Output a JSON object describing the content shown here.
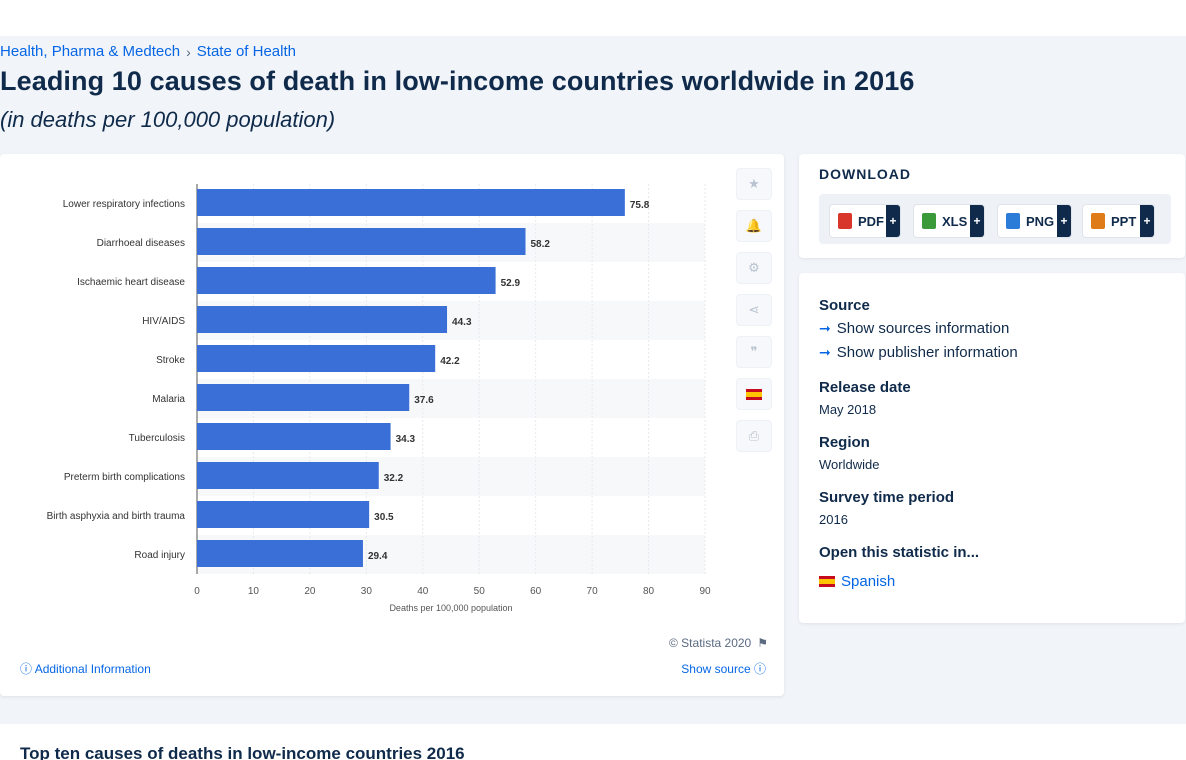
{
  "breadcrumb": {
    "items": [
      "Health, Pharma & Medtech",
      "State of Health"
    ],
    "separator": "›"
  },
  "page": {
    "title": "Leading 10 causes of death in low-income countries worldwide in 2016",
    "subtitle": "(in deaths per 100,000 population)"
  },
  "chart_data": {
    "type": "bar",
    "orientation": "horizontal",
    "categories": [
      "Lower respiratory infections",
      "Diarrhoeal diseases",
      "Ischaemic heart disease",
      "HIV/AIDS",
      "Stroke",
      "Malaria",
      "Tuberculosis",
      "Preterm birth complications",
      "Birth asphyxia and birth trauma",
      "Road injury"
    ],
    "values": [
      75.8,
      58.2,
      52.9,
      44.3,
      42.2,
      37.6,
      34.3,
      32.2,
      30.5,
      29.4
    ],
    "xlabel": "Deaths per 100,000 population",
    "xlim": [
      0,
      90
    ],
    "xticks": [
      0,
      10,
      20,
      30,
      40,
      50,
      60,
      70,
      80,
      90
    ],
    "bar_color": "#3a6fd8",
    "grid": true,
    "data_labels": true
  },
  "chart_footer": {
    "copyright": "© Statista 2020",
    "additional_info": "Additional Information",
    "show_source": "Show source"
  },
  "download": {
    "title": "DOWNLOAD",
    "buttons": [
      {
        "label": "PDF",
        "icon": "pdf-file-icon",
        "color": "#d9362b"
      },
      {
        "label": "XLS",
        "icon": "xls-file-icon",
        "color": "#3a9a3a"
      },
      {
        "label": "PNG",
        "icon": "png-file-icon",
        "color": "#2b7bd9"
      },
      {
        "label": "PPT",
        "icon": "ppt-file-icon",
        "color": "#e07b1a"
      }
    ],
    "plus": "+"
  },
  "info": {
    "source_label": "Source",
    "show_sources": "Show sources information",
    "show_publisher": "Show publisher information",
    "release_label": "Release date",
    "release_value": "May 2018",
    "region_label": "Region",
    "region_value": "Worldwide",
    "survey_label": "Survey time period",
    "survey_value": "2016",
    "open_label": "Open this statistic in...",
    "open_language": "Spanish"
  },
  "bottom": {
    "title": "Top ten causes of deaths in low-income countries 2016"
  },
  "colors": {
    "accent": "#0666e5",
    "navy": "#0f2a4a",
    "bar": "#3a6fd8"
  }
}
